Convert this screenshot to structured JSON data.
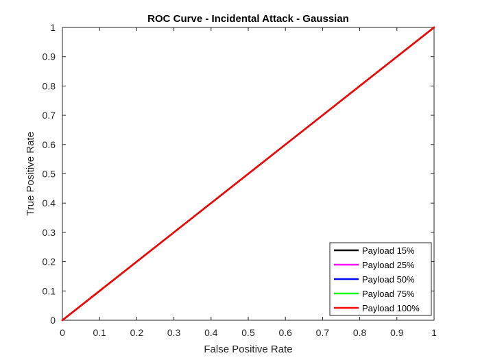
{
  "chart_data": {
    "type": "line",
    "title": "ROC Curve - Incidental Attack - Gaussian",
    "xlabel": "False Positive Rate",
    "ylabel": "True Positive Rate",
    "xlim": [
      0,
      1
    ],
    "ylim": [
      0,
      1
    ],
    "xticks": [
      0,
      0.1,
      0.2,
      0.3,
      0.4,
      0.5,
      0.6,
      0.7,
      0.8,
      0.9,
      1
    ],
    "yticks": [
      0,
      0.1,
      0.2,
      0.3,
      0.4,
      0.5,
      0.6,
      0.7,
      0.8,
      0.9,
      1
    ],
    "xtick_labels": [
      "0",
      "0.1",
      "0.2",
      "0.3",
      "0.4",
      "0.5",
      "0.6",
      "0.7",
      "0.8",
      "0.9",
      "1"
    ],
    "ytick_labels": [
      "0",
      "0.1",
      "0.2",
      "0.3",
      "0.4",
      "0.5",
      "0.6",
      "0.7",
      "0.8",
      "0.9",
      "1"
    ],
    "grid": false,
    "legend_position": "bottom-right",
    "series": [
      {
        "name": "Payload 15%",
        "color": "#000000",
        "x": [
          0,
          1
        ],
        "y": [
          0,
          1
        ]
      },
      {
        "name": "Payload 25%",
        "color": "#ff00ff",
        "x": [
          0,
          1
        ],
        "y": [
          0,
          1
        ]
      },
      {
        "name": "Payload 50%",
        "color": "#0000ff",
        "x": [
          0,
          1
        ],
        "y": [
          0,
          1
        ]
      },
      {
        "name": "Payload 75%",
        "color": "#00ff00",
        "x": [
          0,
          1
        ],
        "y": [
          0,
          1
        ]
      },
      {
        "name": "Payload 100%",
        "color": "#ff0000",
        "x": [
          0,
          1
        ],
        "y": [
          0,
          1
        ]
      }
    ]
  }
}
